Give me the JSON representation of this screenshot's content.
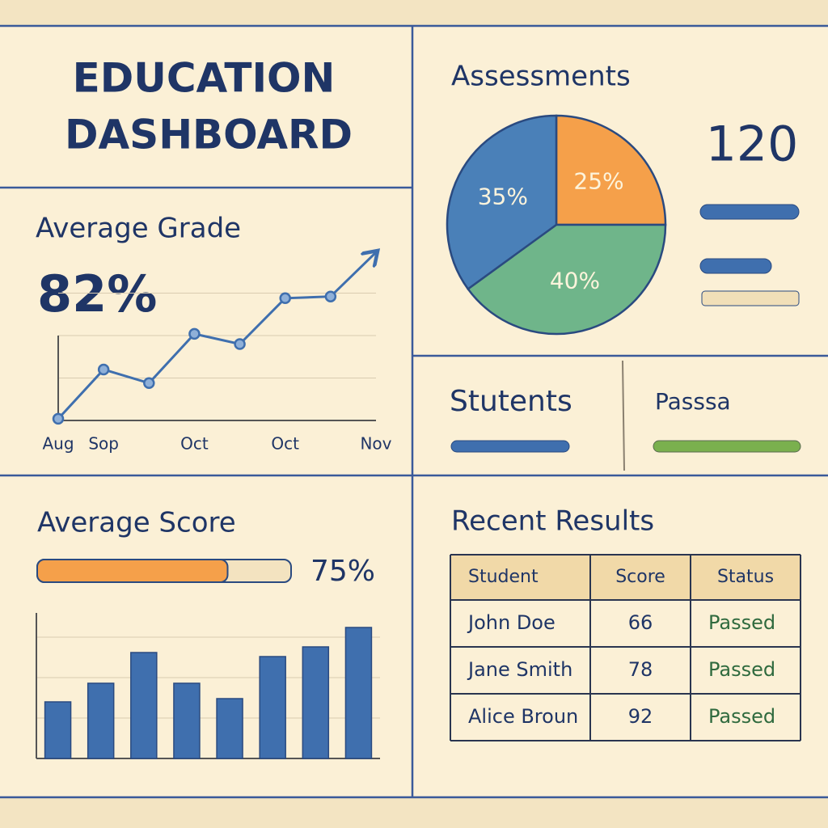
{
  "header": {
    "title_lines": [
      "EDUCATION",
      "DASHBOARD"
    ]
  },
  "average_grade": {
    "title": "Average Grade",
    "value": "82%"
  },
  "assessments": {
    "title": "Assessments",
    "total": 120
  },
  "students": {
    "title": "Stutents"
  },
  "passed": {
    "title": "Passsa"
  },
  "average_score": {
    "title": "Average Score"
  },
  "recent_results": {
    "title": "Recent Results",
    "columns": [
      "Student",
      "Score",
      "Status"
    ],
    "rows": [
      [
        "John Doe",
        66,
        "Passed"
      ],
      [
        "Jane Smith",
        78,
        "Passed"
      ],
      [
        "Alice Broun",
        92,
        "Passed"
      ]
    ]
  },
  "chart_data": [
    {
      "type": "line",
      "categories": [
        "Aug",
        "Sop",
        null,
        "Oct",
        null,
        "Oct",
        null,
        "Nov"
      ],
      "values": [
        1,
        30,
        22,
        51,
        45,
        72,
        73,
        99
      ],
      "color": "#3f6fae",
      "ylim": [
        0,
        100
      ],
      "yticks": [
        25,
        50,
        75
      ],
      "grid": true
    },
    {
      "type": "pie",
      "values": [
        25,
        40,
        35
      ],
      "value_labels": [
        "25%",
        "40%",
        "35%"
      ],
      "colors": [
        "#f5a04a",
        "#6fb58a",
        "#4a80b8"
      ]
    },
    {
      "type": "progress",
      "values": [
        75
      ],
      "value_labels": [
        "75%"
      ],
      "xlim": [
        0,
        100
      ],
      "color": "#f5a04a"
    },
    {
      "type": "bar",
      "categories": [
        null,
        null,
        null,
        null,
        null,
        null,
        null,
        null
      ],
      "values": [
        70,
        93,
        131,
        93,
        74,
        126,
        138,
        162
      ],
      "color": "#3f6fae",
      "ylim": [
        0,
        180
      ],
      "yticks": [
        50,
        100,
        150
      ],
      "grid": true
    }
  ]
}
